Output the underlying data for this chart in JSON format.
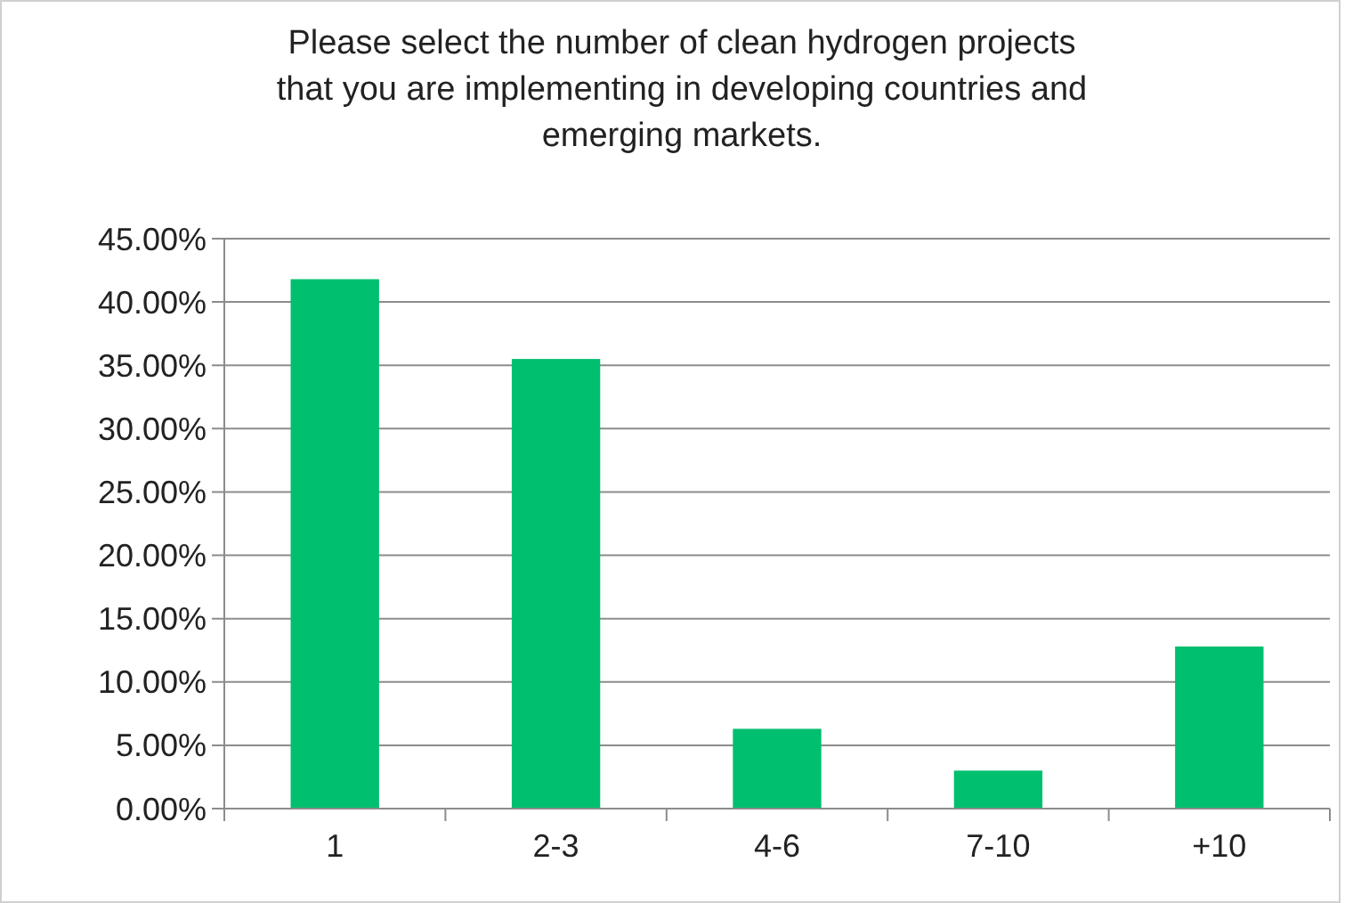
{
  "chart_data": {
    "type": "bar",
    "title": "Please select the number of clean hydrogen projects\nthat you are implementing in developing countries and\nemerging markets.",
    "categories": [
      "1",
      "2-3",
      "4-6",
      "7-10",
      "+10"
    ],
    "values": [
      41.8,
      35.5,
      6.3,
      3.0,
      12.8
    ],
    "color": "#00bf6f",
    "ylim": [
      0,
      45
    ],
    "yticks": [
      {
        "value": 0,
        "label": "0.00%"
      },
      {
        "value": 5,
        "label": "5.00%"
      },
      {
        "value": 10,
        "label": "10.00%"
      },
      {
        "value": 15,
        "label": "15.00%"
      },
      {
        "value": 20,
        "label": "20.00%"
      },
      {
        "value": 25,
        "label": "25.00%"
      },
      {
        "value": 30,
        "label": "30.00%"
      },
      {
        "value": 35,
        "label": "35.00%"
      },
      {
        "value": 40,
        "label": "40.00%"
      },
      {
        "value": 45,
        "label": "45.00%"
      }
    ],
    "grid": "y"
  }
}
